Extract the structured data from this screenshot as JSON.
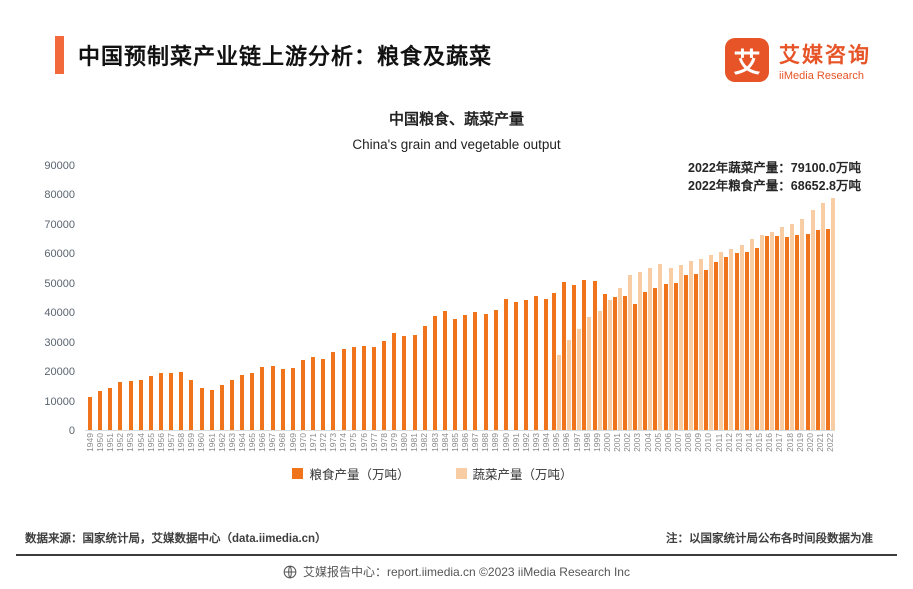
{
  "header": {
    "title": "中国预制菜产业链上游分析：粮食及蔬菜",
    "logo": {
      "icon_char": "艾",
      "name_cn": "艾媒咨询",
      "name_en": "iiMedia Research"
    }
  },
  "chart": {
    "title_cn": "中国粮食、蔬菜产量",
    "title_en": "China's grain and vegetable output",
    "annotation_line1": "2022年蔬菜产量：79100.0万吨",
    "annotation_line2": "2022年粮食产量：68652.8万吨"
  },
  "chart_data": {
    "type": "bar",
    "title": "中国粮食、蔬菜产量",
    "subtitle": "China's grain and vegetable output",
    "xlabel": "",
    "ylabel": "",
    "ylim": [
      0,
      90000
    ],
    "y_ticks": [
      0,
      10000,
      20000,
      30000,
      40000,
      50000,
      60000,
      70000,
      80000,
      90000
    ],
    "grid": false,
    "legend_position": "bottom",
    "categories": [
      "1949",
      "1950",
      "1951",
      "1952",
      "1953",
      "1954",
      "1955",
      "1956",
      "1957",
      "1958",
      "1959",
      "1960",
      "1961",
      "1962",
      "1963",
      "1964",
      "1965",
      "1966",
      "1967",
      "1968",
      "1969",
      "1970",
      "1971",
      "1972",
      "1973",
      "1974",
      "1975",
      "1976",
      "1977",
      "1978",
      "1979",
      "1980",
      "1981",
      "1982",
      "1983",
      "1984",
      "1985",
      "1986",
      "1987",
      "1988",
      "1989",
      "1990",
      "1991",
      "1992",
      "1993",
      "1994",
      "1995",
      "1996",
      "1997",
      "1998",
      "1999",
      "2000",
      "2001",
      "2002",
      "2003",
      "2004",
      "2005",
      "2006",
      "2007",
      "2008",
      "2009",
      "2010",
      "2011",
      "2012",
      "2013",
      "2014",
      "2015",
      "2016",
      "2017",
      "2018",
      "2019",
      "2020",
      "2021",
      "2022"
    ],
    "series": [
      {
        "name": "粮食产量（万吨）",
        "color": "#F0741B",
        "values": [
          11318,
          13213,
          14369,
          16392,
          16683,
          16952,
          18394,
          19275,
          19505,
          19765,
          16968,
          14385,
          13650,
          15441,
          17000,
          18750,
          19453,
          21400,
          21782,
          20906,
          21097,
          23996,
          25014,
          24048,
          26494,
          27527,
          28452,
          28631,
          28273,
          30477,
          33212,
          32056,
          32502,
          35450,
          38728,
          40731,
          37911,
          39151,
          40298,
          39408,
          40755,
          44624,
          43529,
          44266,
          45649,
          44510,
          46662,
          50454,
          49417,
          51230,
          50839,
          46218,
          45264,
          45706,
          43070,
          46947,
          48402,
          49804,
          50160,
          52871,
          53082,
          54648,
          57121,
          58958,
          60194,
          60703,
          62144,
          66044,
          66161,
          65789,
          66384,
          66949,
          68285,
          68652.8
        ]
      },
      {
        "name": "蔬菜产量（万吨）",
        "color": "#F8CDA3",
        "values": [
          null,
          null,
          null,
          null,
          null,
          null,
          null,
          null,
          null,
          null,
          null,
          null,
          null,
          null,
          null,
          null,
          null,
          null,
          null,
          null,
          null,
          null,
          null,
          null,
          null,
          null,
          null,
          null,
          null,
          null,
          null,
          null,
          null,
          null,
          null,
          null,
          null,
          null,
          null,
          null,
          null,
          null,
          null,
          null,
          null,
          null,
          25726.7,
          30819.1,
          34473.5,
          38499.7,
          40513.5,
          44467.9,
          48422.4,
          52860.6,
          54032.3,
          55064.7,
          56451.5,
          55200,
          56400,
          57700,
          58400,
          59500,
          60800,
          61800,
          63198,
          64949,
          66425,
          67434,
          69193,
          70347,
          72103,
          74913,
          77549,
          79100
        ]
      }
    ]
  },
  "footer": {
    "source": "数据来源：国家统计局，艾媒数据中心（data.iimedia.cn）",
    "note": "注：以国家统计局公布各时间段数据为准",
    "center": "艾媒报告中心：report.iimedia.cn  ©2023  iiMedia Research Inc"
  }
}
